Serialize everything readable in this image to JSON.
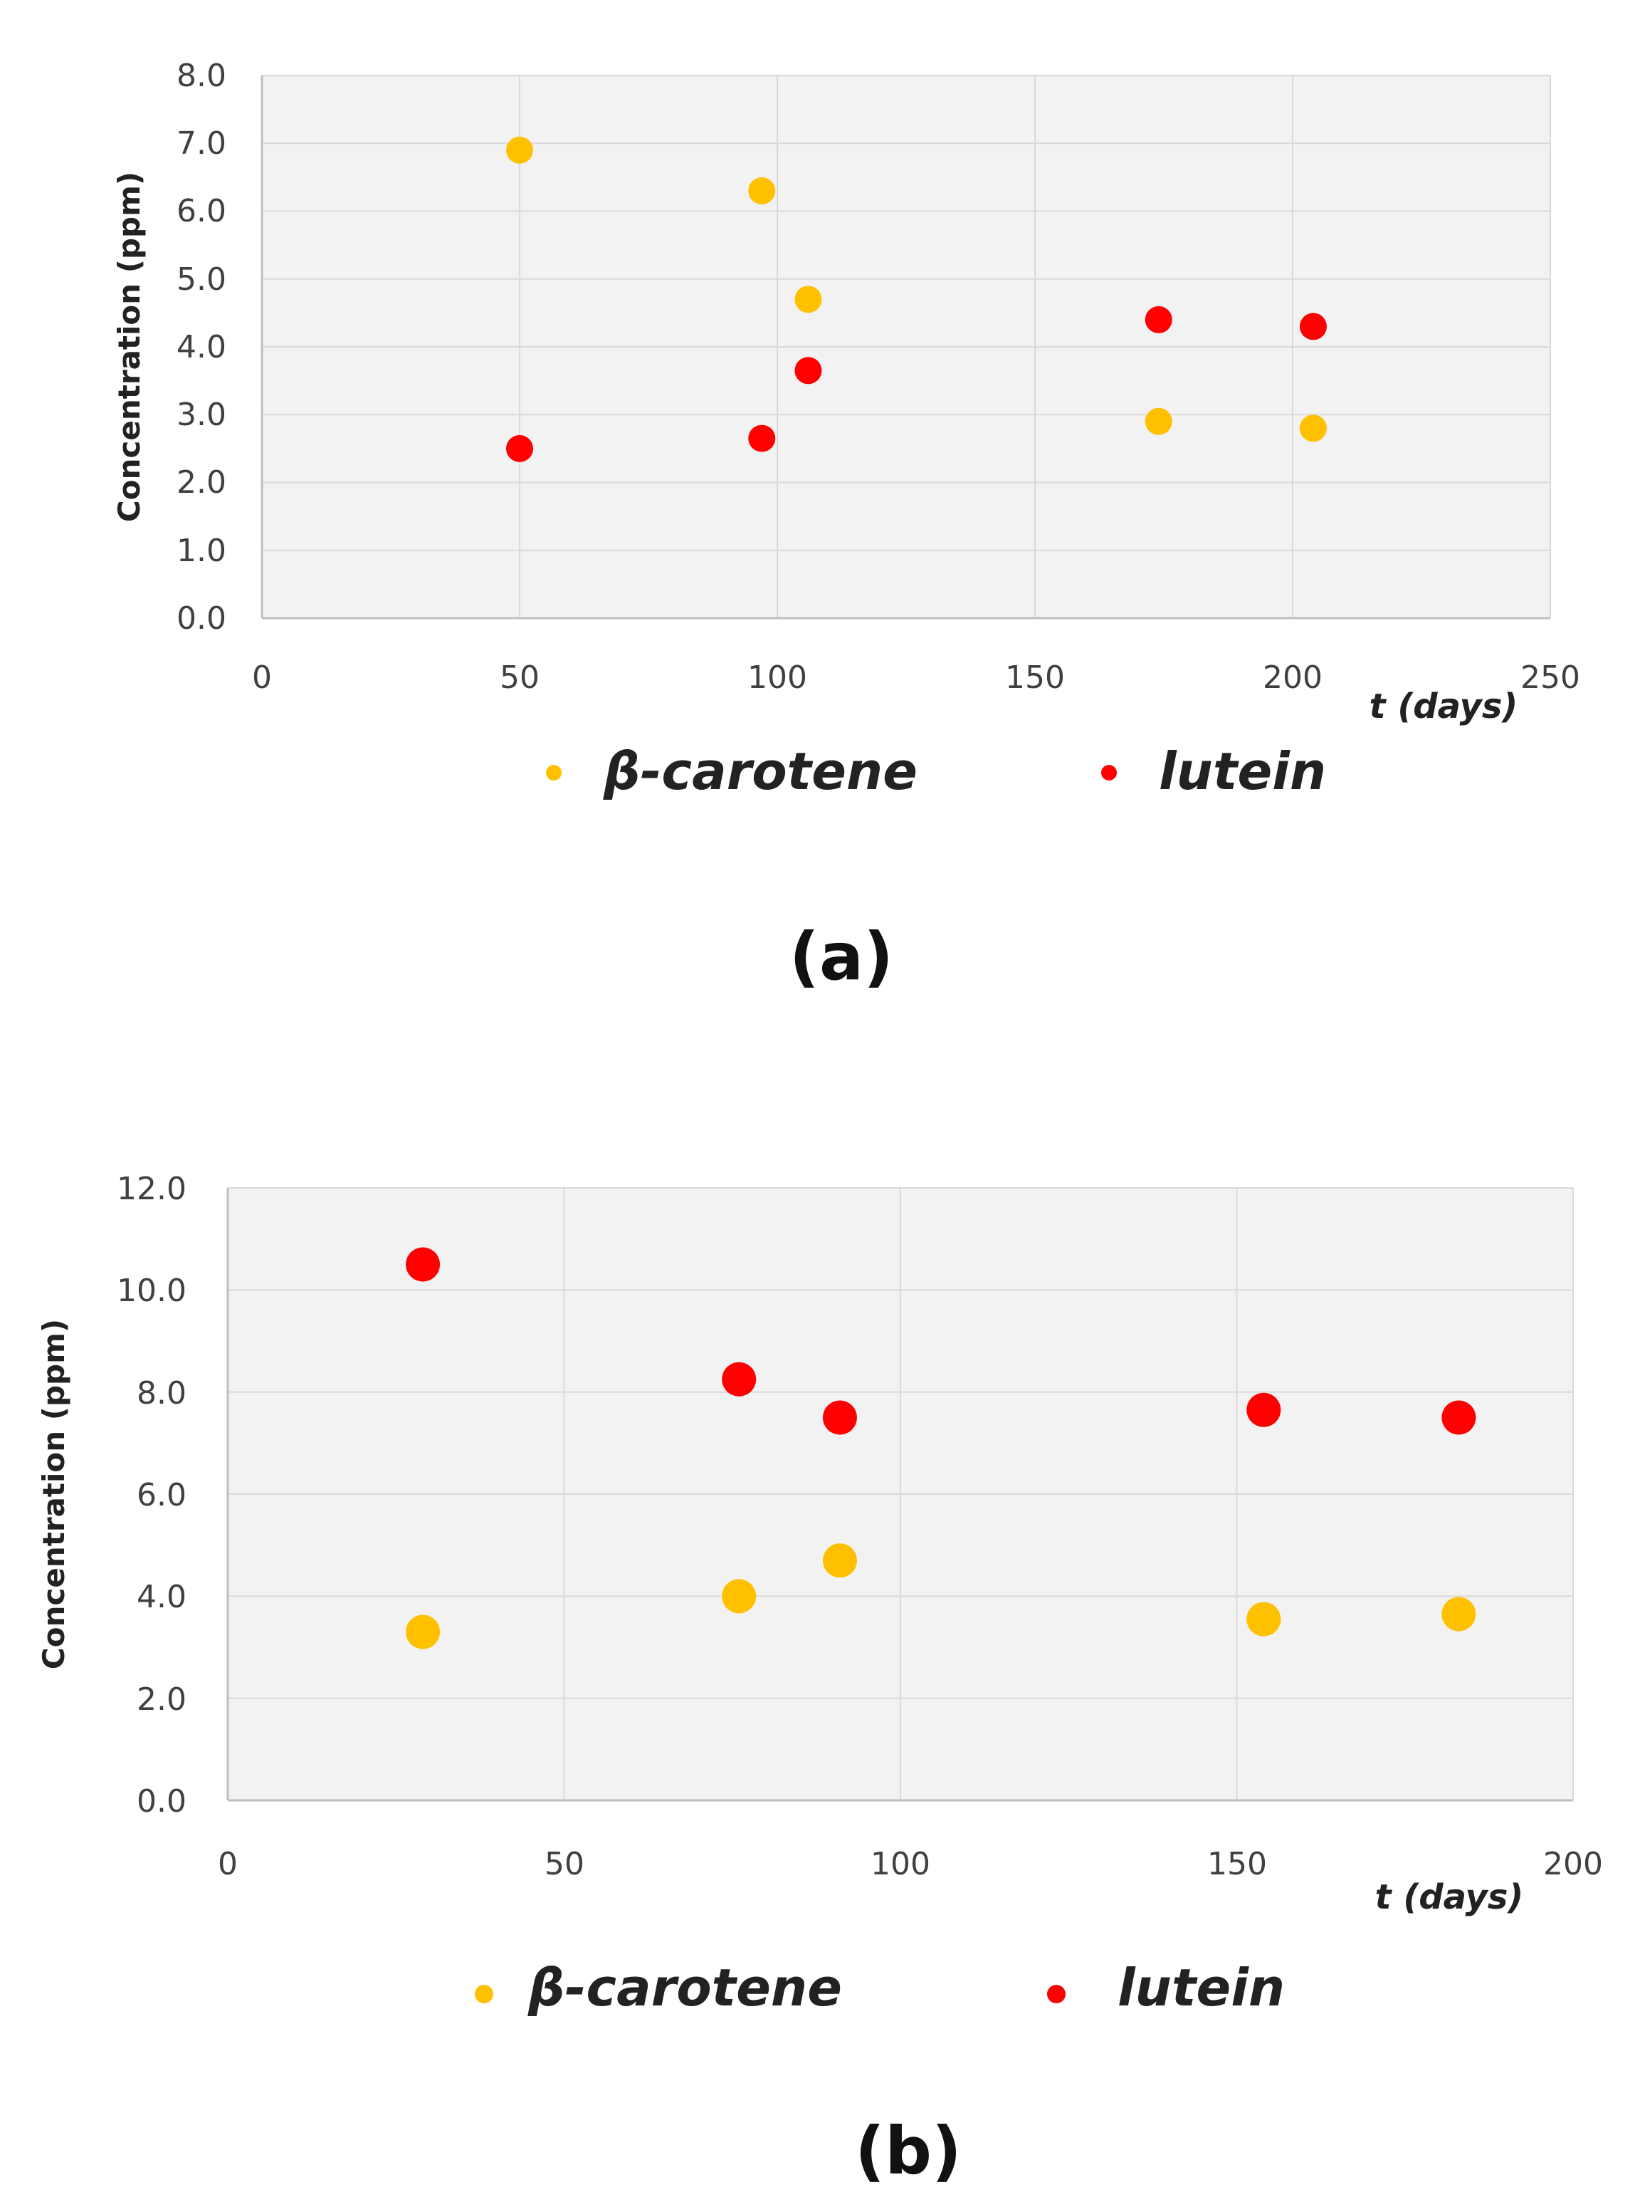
{
  "colors": {
    "beta_carotene": "#FFC000",
    "lutein": "#FF0000",
    "plot_background": "#F2F2F2",
    "gridline": "#D9D9D9",
    "axis": "#BFBFBF"
  },
  "chart_data": [
    {
      "type": "scatter",
      "panel_label": "(a)",
      "xlabel": "t (days)",
      "ylabel": "Concentration (ppm)",
      "xlim": [
        0,
        250
      ],
      "ylim": [
        0,
        8
      ],
      "x_ticks": [
        "0",
        "50",
        "100",
        "150",
        "200",
        "250"
      ],
      "y_ticks": [
        "0.0",
        "1.0",
        "2.0",
        "3.0",
        "4.0",
        "5.0",
        "6.0",
        "7.0",
        "8.0"
      ],
      "grid": true,
      "legend_position": "bottom",
      "series": [
        {
          "name": "β-carotene",
          "color": "#FFC000",
          "x": [
            50,
            97,
            106,
            174,
            204
          ],
          "y": [
            6.9,
            6.3,
            4.7,
            2.9,
            2.8
          ]
        },
        {
          "name": "lutein",
          "color": "#FF0000",
          "x": [
            50,
            97,
            106,
            174,
            204
          ],
          "y": [
            2.5,
            2.65,
            3.65,
            4.4,
            4.3
          ]
        }
      ]
    },
    {
      "type": "scatter",
      "panel_label": "(b)",
      "xlabel": "t (days)",
      "ylabel": "Concentration (ppm)",
      "xlim": [
        0,
        200
      ],
      "ylim": [
        0,
        12
      ],
      "x_ticks": [
        "0",
        "50",
        "100",
        "150",
        "200"
      ],
      "y_ticks": [
        "0.0",
        "2.0",
        "4.0",
        "6.0",
        "8.0",
        "10.0",
        "12.0"
      ],
      "grid": true,
      "legend_position": "bottom",
      "series": [
        {
          "name": "β-carotene",
          "color": "#FFC000",
          "x": [
            29,
            76,
            91,
            154,
            183
          ],
          "y": [
            3.3,
            4.0,
            4.7,
            3.55,
            3.65
          ]
        },
        {
          "name": "lutein",
          "color": "#FF0000",
          "x": [
            29,
            76,
            91,
            154,
            183
          ],
          "y": [
            10.5,
            8.25,
            7.5,
            7.65,
            7.5
          ]
        }
      ]
    }
  ]
}
